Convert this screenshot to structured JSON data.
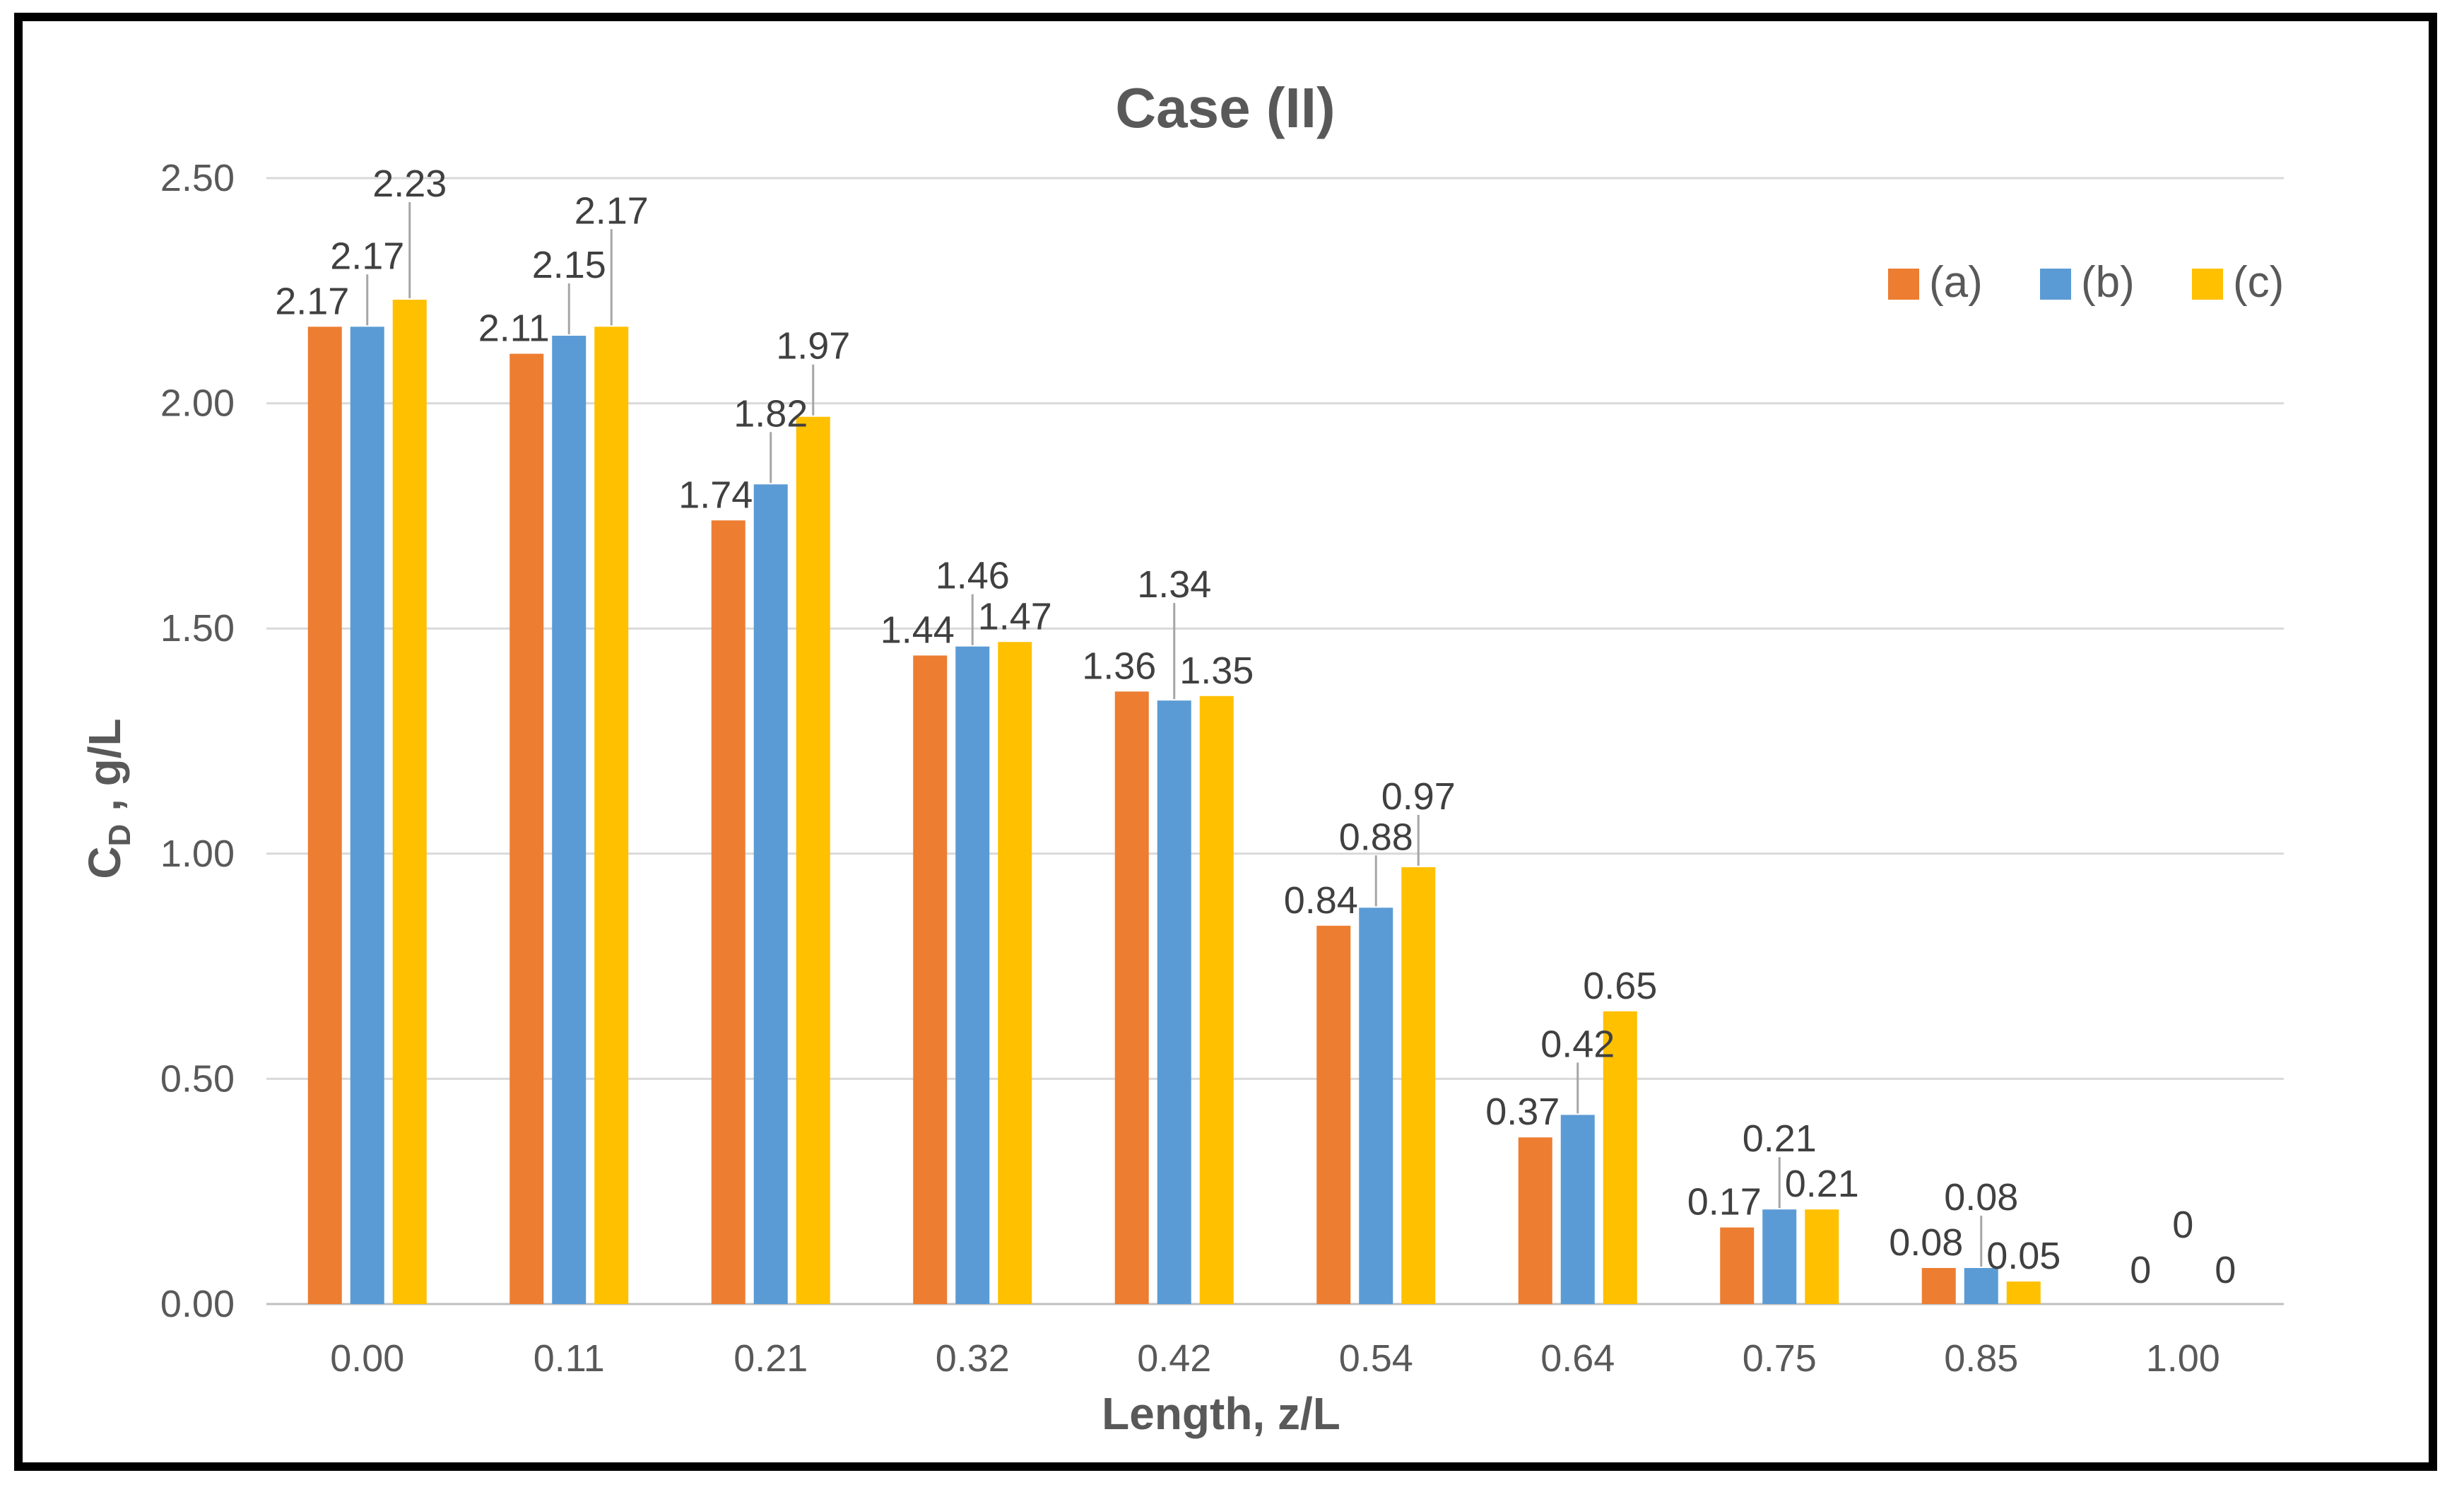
{
  "chart_data": {
    "type": "bar",
    "title": "Case (II)",
    "xlabel": "Length, z/L",
    "ylabel_main": "C",
    "ylabel_sub": "D",
    "ylabel_rest": " , g/L",
    "ylim": [
      0,
      2.5
    ],
    "yticks": [
      "0.00",
      "0.50",
      "1.00",
      "1.50",
      "2.00",
      "2.50"
    ],
    "ytick_values": [
      0,
      0.5,
      1.0,
      1.5,
      2.0,
      2.5
    ],
    "categories": [
      "0.00",
      "0.11",
      "0.21",
      "0.32",
      "0.42",
      "0.54",
      "0.64",
      "0.75",
      "0.85",
      "1.00"
    ],
    "series": [
      {
        "name": "(a)",
        "color": "#ED7D31",
        "values": [
          2.17,
          2.11,
          1.74,
          1.44,
          1.36,
          0.84,
          0.37,
          0.17,
          0.08,
          0
        ],
        "labels": [
          "2.17",
          "2.11",
          "1.74",
          "1.44",
          "1.36",
          "0.84",
          "0.37",
          "0.17",
          "0.08",
          "0"
        ]
      },
      {
        "name": "(b)",
        "color": "#5B9BD5",
        "values": [
          2.17,
          2.15,
          1.82,
          1.46,
          1.34,
          0.88,
          0.42,
          0.21,
          0.08,
          0
        ],
        "labels": [
          "2.17",
          "2.15",
          "1.82",
          "1.46",
          "1.34",
          "0.88",
          "0.42",
          "0.21",
          "0.08",
          "0"
        ]
      },
      {
        "name": "(c)",
        "color": "#FFC000",
        "values": [
          2.23,
          2.17,
          1.97,
          1.47,
          1.35,
          0.97,
          0.65,
          0.21,
          0.05,
          0
        ],
        "labels": [
          "2.23",
          "2.17",
          "1.97",
          "1.47",
          "1.35",
          "0.97",
          "0.65",
          "0.21",
          "0.05",
          "0"
        ]
      }
    ],
    "legend_position": "top-right",
    "grid": true
  }
}
